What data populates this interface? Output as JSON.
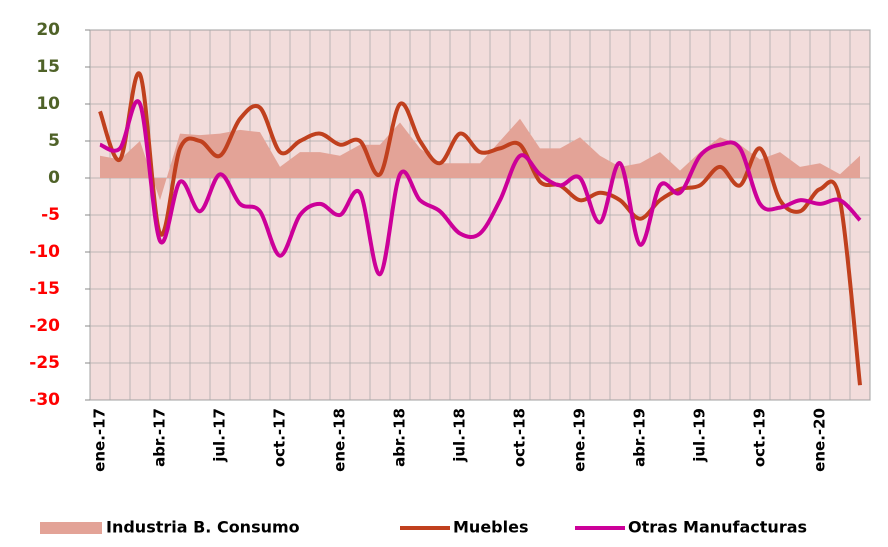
{
  "chart_data": {
    "type": "line",
    "categories": [
      "ene.-17",
      null,
      null,
      "abr.-17",
      null,
      null,
      "jul.-17",
      null,
      null,
      "oct.-17",
      null,
      null,
      "ene.-18",
      null,
      null,
      "abr.-18",
      null,
      null,
      "jul.-18",
      null,
      null,
      "oct.-18",
      null,
      null,
      "ene.-19",
      null,
      null,
      "abr.-19",
      null,
      null,
      "jul.-19",
      null,
      null,
      "oct.-19",
      null,
      null,
      "ene.-20",
      null,
      null
    ],
    "series": [
      {
        "name": "Industria B. Consumo",
        "kind": "area",
        "color": "#e3a397",
        "values": [
          3,
          2.5,
          5,
          -3,
          6,
          5.8,
          6,
          6.5,
          6.2,
          1.5,
          3.5,
          3.5,
          3,
          4.5,
          4.5,
          7.5,
          4,
          2,
          2,
          2,
          5,
          8,
          4,
          4,
          5.5,
          3,
          1.5,
          2,
          3.5,
          1,
          3.5,
          5.5,
          4.5,
          2.5,
          3.5,
          1.5,
          2,
          0.5,
          3
        ]
      },
      {
        "name": "Muebles",
        "kind": "line",
        "color": "#c0401e",
        "values": [
          9,
          2.5,
          14,
          -7.5,
          4,
          5,
          3,
          8,
          9.5,
          3.5,
          5,
          6,
          4.5,
          5,
          0.5,
          10,
          5,
          2,
          6,
          3.5,
          4,
          4.5,
          -0.5,
          -1,
          -3,
          -2,
          -3,
          -5.5,
          -3,
          -1.5,
          -1,
          1.5,
          -1,
          4,
          -3,
          -4.5,
          -1.5,
          -3,
          -28
        ]
      },
      {
        "name": "Otras Manufacturas",
        "kind": "line",
        "color": "#cc0099",
        "values": [
          4.5,
          4,
          10,
          -8.5,
          -0.5,
          -4.5,
          0.5,
          -3.5,
          -4.5,
          -10.5,
          -5,
          -3.5,
          -5,
          -2,
          -13,
          0.5,
          -3,
          -4.5,
          -7.5,
          -7.5,
          -3,
          3,
          0.5,
          -1,
          0,
          -6,
          2,
          -9,
          -1,
          -2,
          3,
          4.5,
          4,
          -3.5,
          -4,
          -3,
          -3.5,
          -3,
          -5.7
        ]
      }
    ],
    "ylim": [
      -30,
      20
    ],
    "yticks": [
      20,
      15,
      10,
      5,
      0,
      -5,
      -10,
      -15,
      -20,
      -25,
      -30
    ],
    "grid": true,
    "background": "#f2dcdb",
    "positive_tick_color": "#4f6228",
    "negative_tick_color": "#ff0000",
    "legend": "bottom"
  }
}
